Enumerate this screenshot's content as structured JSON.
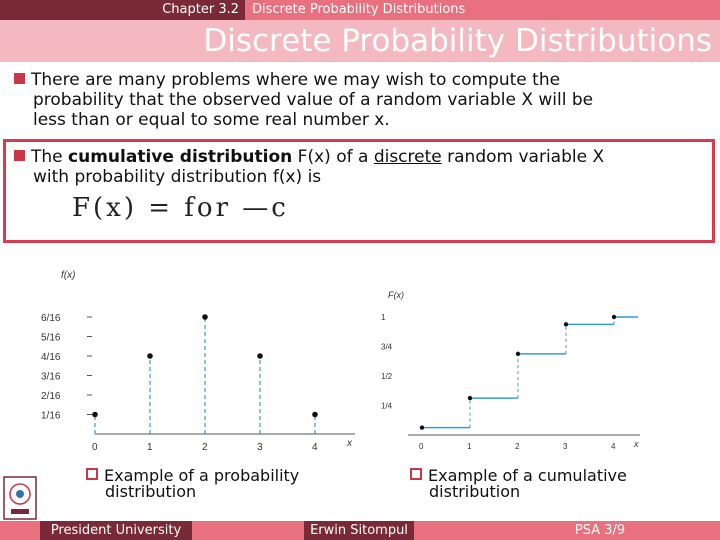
{
  "header": {
    "chapter": "Chapter 3.2",
    "subtitle": "Discrete Probability Distributions",
    "title": "Discrete Probability Distributions"
  },
  "bullets": {
    "b1": {
      "line1": "There are many problems where we may wish to compute the",
      "line2": "probability that the observed value of a random variable X will be",
      "line3": "less than or equal to some real number x."
    },
    "b2": {
      "pre": "The ",
      "bold": "cumulative distribution",
      "mid": " F(x) of a ",
      "under": "discrete",
      "post": " random variable X",
      "line2": "with probability distribution f(x) is"
    }
  },
  "formula": {
    "text": "F(x) = for  —c"
  },
  "chart_data": [
    {
      "type": "bar",
      "ylabel": "f(x)",
      "xlabel": "x",
      "x": [
        0,
        1,
        2,
        3,
        4
      ],
      "values": [
        0.0625,
        0.25,
        0.375,
        0.25,
        0.0625
      ],
      "yticks": [
        "1/16",
        "2/16",
        "3/16",
        "4/16",
        "5/16",
        "6/16"
      ],
      "xticks": [
        "0",
        "1",
        "2",
        "3",
        "4"
      ]
    },
    {
      "type": "line",
      "ylabel": "F(x)",
      "xlabel": "x",
      "x": [
        0,
        1,
        2,
        3,
        4
      ],
      "values": [
        0.0625,
        0.3125,
        0.6875,
        0.9375,
        1.0
      ],
      "yticks": [
        "1/4",
        "1/2",
        "3/4",
        "1"
      ],
      "xticks": [
        "0",
        "1",
        "2",
        "3",
        "4"
      ]
    }
  ],
  "captions": {
    "left_line1": "Example of a probability",
    "left_line2": "distribution",
    "right_line1": "Example of a cumulative",
    "right_line2": "distribution"
  },
  "footer": {
    "left": "President University",
    "mid": "Erwin Sitompul",
    "right": "PSA 3/9"
  },
  "colors": {
    "accent": "#e8707f",
    "dark": "#7a2a36",
    "box": "#d63b4f",
    "dash": "#3a9bd5"
  }
}
